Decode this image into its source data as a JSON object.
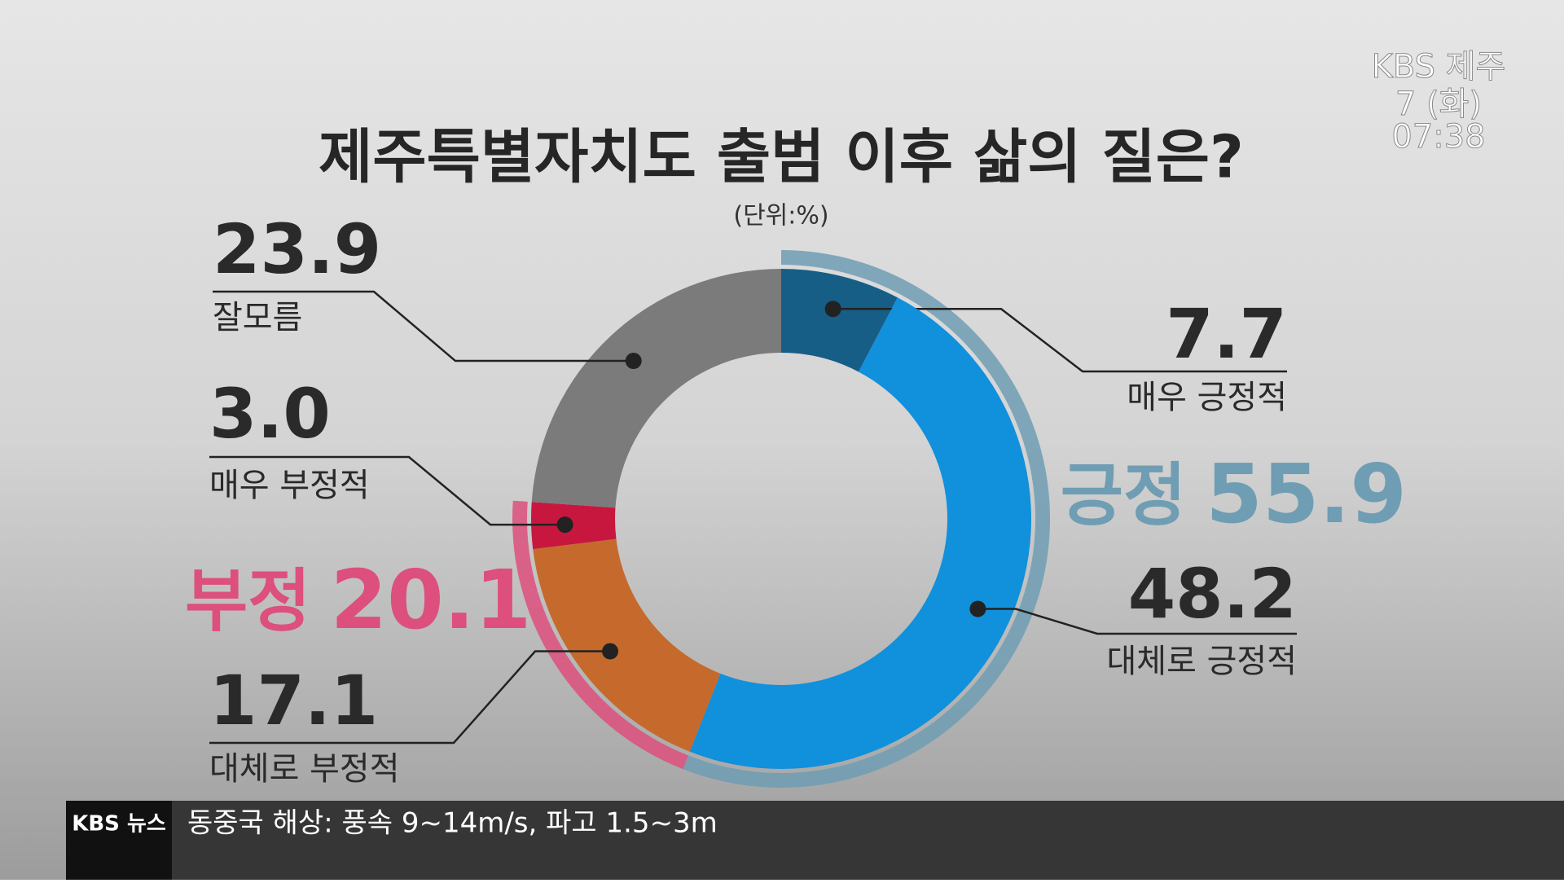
{
  "chart_data": {
    "type": "donut",
    "title": "제주특별자치도 출범 이후 삶의 질은?",
    "subtitle": "(단위:%)",
    "categories": [
      "매우 긍정적",
      "대체로 긍정적",
      "대체로 부정적",
      "매우 부정적",
      "잘모름"
    ],
    "values": [
      7.7,
      48.2,
      17.1,
      3.0,
      23.9
    ],
    "value_labels": [
      "7.7",
      "48.2",
      "17.1",
      "3.0",
      "23.9"
    ],
    "colors": [
      "#175e86",
      "#1190dc",
      "#c56a2c",
      "#c8173f",
      "#7b7b7b"
    ],
    "groups": [
      {
        "name": "긍정",
        "value": 55.9,
        "color": "#6f9db3"
      },
      {
        "name": "부정",
        "value": 20.1,
        "color": "#dd4f7c"
      }
    ]
  },
  "broadcaster": {
    "logo": "KBS 제주",
    "date": "7 (화)",
    "time": "07:38"
  },
  "ticker": {
    "label": "KBS 뉴스",
    "text": "동중국 해상: 풍속 9~14m/s, 파고 1.5~3m"
  }
}
